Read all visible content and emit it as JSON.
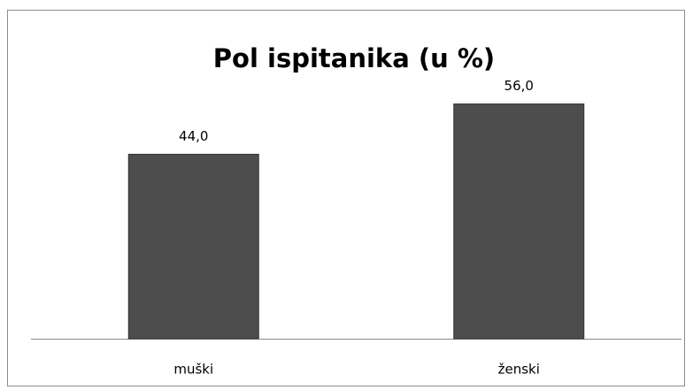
{
  "chart_data": {
    "type": "bar",
    "title": "Pol ispitanika (u %)",
    "categories": [
      "muški",
      "ženski"
    ],
    "values": [
      44.0,
      56.0
    ],
    "value_labels": [
      "44,0",
      "56,0"
    ],
    "color": "#4d4d4d"
  }
}
